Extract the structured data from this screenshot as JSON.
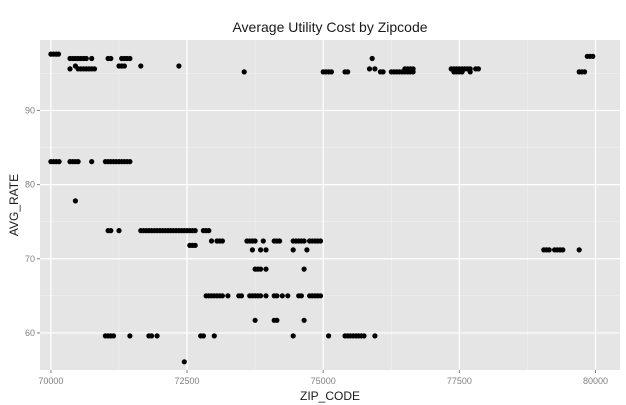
{
  "chart_data": {
    "type": "scatter",
    "title": "Average Utility Cost by Zipcode",
    "xlabel": "ZIP_CODE",
    "ylabel": "AVG_RATE",
    "xlim": [
      69800,
      80450
    ],
    "ylim": [
      55,
      99.5
    ],
    "xticks": [
      70000,
      72500,
      75000,
      77500,
      80000
    ],
    "xtick_labels": [
      "70000",
      "72500",
      "75000",
      "77500",
      "80000"
    ],
    "yticks": [
      60,
      70,
      80,
      90
    ],
    "ytick_labels": [
      "60",
      "70",
      "80",
      "90"
    ],
    "grid": true,
    "legend": "none",
    "colors": {
      "panel": "#e5e5e5",
      "grid_major": "#ffffff",
      "grid_minor": "#f2f2f2",
      "point": "#000000"
    },
    "points": [
      [
        70000,
        97.6
      ],
      [
        70050,
        97.6
      ],
      [
        70100,
        97.6
      ],
      [
        70140,
        97.6
      ],
      [
        70000,
        83.1
      ],
      [
        70050,
        83.1
      ],
      [
        70100,
        83.1
      ],
      [
        70150,
        83.1
      ],
      [
        70350,
        83.1
      ],
      [
        70400,
        83.1
      ],
      [
        70450,
        83.1
      ],
      [
        70500,
        83.1
      ],
      [
        70750,
        83.1
      ],
      [
        71000,
        83.1
      ],
      [
        71050,
        83.1
      ],
      [
        71100,
        83.1
      ],
      [
        71150,
        83.1
      ],
      [
        71200,
        83.1
      ],
      [
        71250,
        83.1
      ],
      [
        71300,
        83.1
      ],
      [
        71350,
        83.1
      ],
      [
        71400,
        83.1
      ],
      [
        71450,
        83.1
      ],
      [
        70350,
        97.0
      ],
      [
        70400,
        97.0
      ],
      [
        70450,
        97.0
      ],
      [
        70500,
        97.0
      ],
      [
        70550,
        97.0
      ],
      [
        70600,
        97.0
      ],
      [
        70650,
        97.0
      ],
      [
        70750,
        97.0
      ],
      [
        70450,
        96.0
      ],
      [
        70350,
        95.6
      ],
      [
        70500,
        95.6
      ],
      [
        70550,
        95.6
      ],
      [
        70600,
        95.6
      ],
      [
        70650,
        95.6
      ],
      [
        70700,
        95.6
      ],
      [
        70750,
        95.6
      ],
      [
        70800,
        95.6
      ],
      [
        71050,
        97.0
      ],
      [
        71100,
        97.0
      ],
      [
        71300,
        97.0
      ],
      [
        71350,
        97.0
      ],
      [
        71400,
        97.0
      ],
      [
        71450,
        97.0
      ],
      [
        71250,
        96.0
      ],
      [
        71300,
        96.0
      ],
      [
        71350,
        96.0
      ],
      [
        71650,
        96.0
      ],
      [
        72350,
        96.0
      ],
      [
        70450,
        77.8
      ],
      [
        71050,
        73.8
      ],
      [
        71100,
        73.8
      ],
      [
        71250,
        73.8
      ],
      [
        71650,
        73.8
      ],
      [
        71700,
        73.8
      ],
      [
        71750,
        73.8
      ],
      [
        71800,
        73.8
      ],
      [
        71850,
        73.8
      ],
      [
        71900,
        73.8
      ],
      [
        71950,
        73.8
      ],
      [
        72000,
        73.8
      ],
      [
        72050,
        73.8
      ],
      [
        72100,
        73.8
      ],
      [
        72150,
        73.8
      ],
      [
        72200,
        73.8
      ],
      [
        72250,
        73.8
      ],
      [
        72300,
        73.8
      ],
      [
        72350,
        73.8
      ],
      [
        72400,
        73.8
      ],
      [
        72450,
        73.8
      ],
      [
        72500,
        73.8
      ],
      [
        72550,
        73.8
      ],
      [
        72600,
        73.8
      ],
      [
        72650,
        73.8
      ],
      [
        72800,
        73.8
      ],
      [
        72850,
        73.8
      ],
      [
        72900,
        73.8
      ],
      [
        72550,
        71.8
      ],
      [
        72600,
        71.8
      ],
      [
        72650,
        71.8
      ],
      [
        72950,
        72.4
      ],
      [
        73050,
        72.4
      ],
      [
        73100,
        72.4
      ],
      [
        73150,
        72.4
      ],
      [
        73600,
        72.4
      ],
      [
        73650,
        72.4
      ],
      [
        73700,
        72.4
      ],
      [
        73750,
        72.4
      ],
      [
        73900,
        72.4
      ],
      [
        74100,
        72.4
      ],
      [
        74150,
        72.4
      ],
      [
        74200,
        72.4
      ],
      [
        74450,
        72.4
      ],
      [
        74500,
        72.4
      ],
      [
        74550,
        72.4
      ],
      [
        74600,
        72.4
      ],
      [
        74650,
        72.4
      ],
      [
        74750,
        72.4
      ],
      [
        74800,
        72.4
      ],
      [
        74850,
        72.4
      ],
      [
        74900,
        72.4
      ],
      [
        74950,
        72.4
      ],
      [
        73700,
        71.2
      ],
      [
        73850,
        71.2
      ],
      [
        73950,
        71.2
      ],
      [
        74450,
        71.2
      ],
      [
        74700,
        71.2
      ],
      [
        73750,
        68.6
      ],
      [
        73800,
        68.6
      ],
      [
        73850,
        68.6
      ],
      [
        73950,
        68.6
      ],
      [
        74650,
        68.6
      ],
      [
        72850,
        65.0
      ],
      [
        72900,
        65.0
      ],
      [
        72950,
        65.0
      ],
      [
        73000,
        65.0
      ],
      [
        73050,
        65.0
      ],
      [
        73100,
        65.0
      ],
      [
        73150,
        65.0
      ],
      [
        73250,
        65.0
      ],
      [
        73450,
        65.0
      ],
      [
        73500,
        65.0
      ],
      [
        73650,
        65.0
      ],
      [
        73700,
        65.0
      ],
      [
        73750,
        65.0
      ],
      [
        73800,
        65.0
      ],
      [
        73850,
        65.0
      ],
      [
        73950,
        65.0
      ],
      [
        74100,
        65.0
      ],
      [
        74150,
        65.0
      ],
      [
        74250,
        65.0
      ],
      [
        74350,
        65.0
      ],
      [
        74550,
        65.0
      ],
      [
        74600,
        65.0
      ],
      [
        74750,
        65.0
      ],
      [
        74800,
        65.0
      ],
      [
        74850,
        65.0
      ],
      [
        74900,
        65.0
      ],
      [
        74950,
        65.0
      ],
      [
        73750,
        61.7
      ],
      [
        74100,
        61.7
      ],
      [
        74150,
        61.7
      ],
      [
        74650,
        61.7
      ],
      [
        71000,
        59.6
      ],
      [
        71050,
        59.6
      ],
      [
        71100,
        59.6
      ],
      [
        71150,
        59.6
      ],
      [
        71450,
        59.6
      ],
      [
        71800,
        59.6
      ],
      [
        71850,
        59.6
      ],
      [
        71950,
        59.6
      ],
      [
        72750,
        59.6
      ],
      [
        72800,
        59.6
      ],
      [
        73000,
        59.6
      ],
      [
        74450,
        59.6
      ],
      [
        75100,
        59.6
      ],
      [
        75400,
        59.6
      ],
      [
        75450,
        59.6
      ],
      [
        75500,
        59.6
      ],
      [
        75550,
        59.6
      ],
      [
        75600,
        59.6
      ],
      [
        75650,
        59.6
      ],
      [
        75700,
        59.6
      ],
      [
        75750,
        59.6
      ],
      [
        75950,
        59.6
      ],
      [
        72450,
        56.1
      ],
      [
        73550,
        95.2
      ],
      [
        75000,
        95.2
      ],
      [
        75050,
        95.2
      ],
      [
        75100,
        95.2
      ],
      [
        75150,
        95.2
      ],
      [
        75400,
        95.2
      ],
      [
        75450,
        95.2
      ],
      [
        75850,
        95.6
      ],
      [
        75950,
        95.6
      ],
      [
        75900,
        97.0
      ],
      [
        76050,
        95.2
      ],
      [
        76100,
        95.2
      ],
      [
        76250,
        95.2
      ],
      [
        76300,
        95.2
      ],
      [
        76350,
        95.2
      ],
      [
        76400,
        95.2
      ],
      [
        76450,
        95.2
      ],
      [
        76500,
        95.2
      ],
      [
        76550,
        95.2
      ],
      [
        76600,
        95.2
      ],
      [
        76650,
        95.2
      ],
      [
        76500,
        95.6
      ],
      [
        76550,
        95.6
      ],
      [
        76600,
        95.6
      ],
      [
        76650,
        95.6
      ],
      [
        77350,
        95.6
      ],
      [
        77400,
        95.6
      ],
      [
        77450,
        95.6
      ],
      [
        77500,
        95.6
      ],
      [
        77550,
        95.6
      ],
      [
        77600,
        95.6
      ],
      [
        77650,
        95.6
      ],
      [
        77700,
        95.6
      ],
      [
        77800,
        95.6
      ],
      [
        77850,
        95.6
      ],
      [
        77400,
        95.2
      ],
      [
        77450,
        95.2
      ],
      [
        77500,
        95.2
      ],
      [
        77550,
        95.2
      ],
      [
        77700,
        95.2
      ],
      [
        79050,
        71.2
      ],
      [
        79100,
        71.2
      ],
      [
        79150,
        71.2
      ],
      [
        79250,
        71.2
      ],
      [
        79300,
        71.2
      ],
      [
        79350,
        71.2
      ],
      [
        79400,
        71.2
      ],
      [
        79700,
        71.2
      ],
      [
        79700,
        95.2
      ],
      [
        79750,
        95.2
      ],
      [
        79800,
        95.2
      ],
      [
        79850,
        97.3
      ],
      [
        79900,
        97.3
      ],
      [
        79950,
        97.3
      ]
    ]
  }
}
